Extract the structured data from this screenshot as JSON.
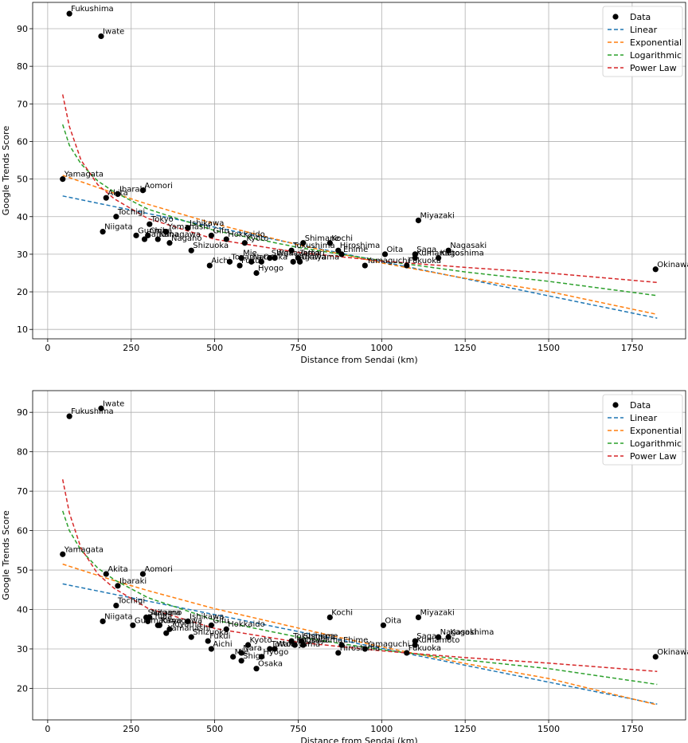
{
  "chart_data": [
    {
      "type": "scatter",
      "xlabel": "Distance from Sendai (km)",
      "ylabel": "Google Trends Score",
      "xlim": [
        -45,
        1910
      ],
      "ylim": [
        7.5,
        97
      ],
      "xticks": [
        0,
        250,
        500,
        750,
        1000,
        1250,
        1500,
        1750
      ],
      "yticks": [
        10,
        20,
        30,
        40,
        50,
        60,
        70,
        80,
        90
      ],
      "grid": true,
      "legend_position": "top-right",
      "legend": [
        "Data",
        "Linear",
        "Exponential",
        "Logarithmic",
        "Power Law"
      ],
      "points": [
        {
          "name": "Fukushima",
          "x": 65,
          "y": 94
        },
        {
          "name": "Iwate",
          "x": 160,
          "y": 88
        },
        {
          "name": "Yamagata",
          "x": 45,
          "y": 50
        },
        {
          "name": "Aomori",
          "x": 285,
          "y": 47
        },
        {
          "name": "Ibaraki",
          "x": 210,
          "y": 46
        },
        {
          "name": "Akita",
          "x": 175,
          "y": 45
        },
        {
          "name": "Tochigi",
          "x": 205,
          "y": 40
        },
        {
          "name": "Tokyo",
          "x": 305,
          "y": 38
        },
        {
          "name": "Ishikawa",
          "x": 420,
          "y": 37
        },
        {
          "name": "Niigata",
          "x": 165,
          "y": 36
        },
        {
          "name": "Gunma",
          "x": 265,
          "y": 35
        },
        {
          "name": "Yamanashi",
          "x": 355,
          "y": 36
        },
        {
          "name": "Chiba",
          "x": 300,
          "y": 35
        },
        {
          "name": "Saitama",
          "x": 290,
          "y": 34
        },
        {
          "name": "Kanagawa",
          "x": 330,
          "y": 34
        },
        {
          "name": "Nagano",
          "x": 365,
          "y": 33
        },
        {
          "name": "Gifu",
          "x": 490,
          "y": 35
        },
        {
          "name": "Hokkaido",
          "x": 535,
          "y": 34
        },
        {
          "name": "Kyoto",
          "x": 590,
          "y": 33
        },
        {
          "name": "Shizuoka",
          "x": 430,
          "y": 31
        },
        {
          "name": "Mie",
          "x": 580,
          "y": 29
        },
        {
          "name": "Shiga",
          "x": 665,
          "y": 29
        },
        {
          "name": "Toyama",
          "x": 545,
          "y": 28
        },
        {
          "name": "Nara",
          "x": 610,
          "y": 28
        },
        {
          "name": "Aichi",
          "x": 485,
          "y": 27
        },
        {
          "name": "Wakayama",
          "x": 680,
          "y": 29
        },
        {
          "name": "Fukui",
          "x": 575,
          "y": 27
        },
        {
          "name": "Hyogo",
          "x": 625,
          "y": 25
        },
        {
          "name": "Osaka",
          "x": 640,
          "y": 28
        },
        {
          "name": "Tokushima",
          "x": 730,
          "y": 31
        },
        {
          "name": "Tottori",
          "x": 750,
          "y": 29
        },
        {
          "name": "Kagawa",
          "x": 735,
          "y": 28
        },
        {
          "name": "Okayama",
          "x": 755,
          "y": 28
        },
        {
          "name": "Shimane",
          "x": 765,
          "y": 33
        },
        {
          "name": "Kochi",
          "x": 845,
          "y": 33
        },
        {
          "name": "Hiroshima",
          "x": 870,
          "y": 31
        },
        {
          "name": "Ehime",
          "x": 880,
          "y": 30
        },
        {
          "name": "Yamaguchi",
          "x": 950,
          "y": 27
        },
        {
          "name": "Oita",
          "x": 1010,
          "y": 30
        },
        {
          "name": "Fukuoka",
          "x": 1075,
          "y": 27
        },
        {
          "name": "Kumamoto",
          "x": 1100,
          "y": 29
        },
        {
          "name": "Saga",
          "x": 1100,
          "y": 30
        },
        {
          "name": "Miyazaki",
          "x": 1110,
          "y": 39
        },
        {
          "name": "Kagoshima",
          "x": 1170,
          "y": 29
        },
        {
          "name": "Nagasaki",
          "x": 1200,
          "y": 31
        },
        {
          "name": "Okinawa",
          "x": 1820,
          "y": 26
        }
      ],
      "fits": [
        {
          "name": "Linear",
          "color": "#1f77b4",
          "x": [
            45,
            1825
          ],
          "y": [
            45.5,
            13
          ]
        },
        {
          "name": "Exponential",
          "color": "#ff7f0e",
          "x": [
            45,
            100,
            200,
            300,
            500,
            750,
            1000,
            1250,
            1500,
            1825
          ],
          "y": [
            51,
            49.3,
            46.2,
            43.3,
            38.1,
            32.5,
            27.7,
            23.6,
            20.1,
            14
          ]
        },
        {
          "name": "Logarithmic",
          "color": "#2ca02c",
          "x": [
            45,
            65,
            100,
            150,
            200,
            300,
            500,
            750,
            1000,
            1250,
            1500,
            1825
          ],
          "y": [
            64.5,
            59,
            54,
            49.5,
            46.5,
            42,
            36.3,
            31.8,
            28.3,
            25.3,
            22.8,
            19
          ]
        },
        {
          "name": "Power Law",
          "color": "#d62728",
          "x": [
            45,
            65,
            100,
            150,
            200,
            300,
            500,
            750,
            1000,
            1250,
            1500,
            1825
          ],
          "y": [
            72.5,
            64,
            55,
            48.5,
            44.7,
            39.5,
            34,
            30.5,
            28.2,
            26.5,
            25,
            22.5
          ]
        }
      ]
    },
    {
      "type": "scatter",
      "xlabel": "Distance from Sendai (km)",
      "ylabel": "Google Trends Score",
      "xlim": [
        -45,
        1910
      ],
      "ylim": [
        12,
        95.5
      ],
      "xticks": [
        0,
        250,
        500,
        750,
        1000,
        1250,
        1500,
        1750
      ],
      "yticks": [
        20,
        30,
        40,
        50,
        60,
        70,
        80,
        90
      ],
      "grid": true,
      "legend_position": "top-right",
      "legend": [
        "Data",
        "Linear",
        "Exponential",
        "Logarithmic",
        "Power Law"
      ],
      "points": [
        {
          "name": "Iwate",
          "x": 160,
          "y": 91
        },
        {
          "name": "Fukushima",
          "x": 65,
          "y": 89
        },
        {
          "name": "Yamagata",
          "x": 45,
          "y": 54
        },
        {
          "name": "Akita",
          "x": 175,
          "y": 49
        },
        {
          "name": "Aomori",
          "x": 285,
          "y": 49
        },
        {
          "name": "Ibaraki",
          "x": 210,
          "y": 46
        },
        {
          "name": "Tochigi",
          "x": 205,
          "y": 41
        },
        {
          "name": "Saitama",
          "x": 295,
          "y": 38
        },
        {
          "name": "Chiba",
          "x": 300,
          "y": 37
        },
        {
          "name": "Nagano",
          "x": 305,
          "y": 38
        },
        {
          "name": "Tokyo",
          "x": 330,
          "y": 36
        },
        {
          "name": "Ishikawa",
          "x": 420,
          "y": 37
        },
        {
          "name": "Niigata",
          "x": 165,
          "y": 37
        },
        {
          "name": "Gunma",
          "x": 255,
          "y": 36
        },
        {
          "name": "Kanagawa",
          "x": 335,
          "y": 36
        },
        {
          "name": "Toyama",
          "x": 365,
          "y": 35
        },
        {
          "name": "Yamanashi",
          "x": 355,
          "y": 34
        },
        {
          "name": "Gifu",
          "x": 490,
          "y": 36
        },
        {
          "name": "Hokkaido",
          "x": 535,
          "y": 35
        },
        {
          "name": "Shizuoka",
          "x": 430,
          "y": 33
        },
        {
          "name": "Fukui",
          "x": 480,
          "y": 32
        },
        {
          "name": "Aichi",
          "x": 490,
          "y": 30
        },
        {
          "name": "Nara",
          "x": 580,
          "y": 29
        },
        {
          "name": "Kyoto",
          "x": 600,
          "y": 31
        },
        {
          "name": "Mie",
          "x": 555,
          "y": 28
        },
        {
          "name": "Shiga",
          "x": 580,
          "y": 27
        },
        {
          "name": "Tottori",
          "x": 665,
          "y": 30
        },
        {
          "name": "Wakayama",
          "x": 680,
          "y": 30
        },
        {
          "name": "Hyogo",
          "x": 640,
          "y": 28
        },
        {
          "name": "Osaka",
          "x": 625,
          "y": 25
        },
        {
          "name": "Tokushima",
          "x": 730,
          "y": 32
        },
        {
          "name": "Kagawa",
          "x": 740,
          "y": 31
        },
        {
          "name": "Shimane",
          "x": 760,
          "y": 32
        },
        {
          "name": "Okayama",
          "x": 765,
          "y": 31
        },
        {
          "name": "Kochi",
          "x": 845,
          "y": 38
        },
        {
          "name": "Ehime",
          "x": 880,
          "y": 31
        },
        {
          "name": "Hiroshima",
          "x": 870,
          "y": 29
        },
        {
          "name": "Yamaguchi",
          "x": 950,
          "y": 30
        },
        {
          "name": "Oita",
          "x": 1005,
          "y": 36
        },
        {
          "name": "Fukuoka",
          "x": 1075,
          "y": 29
        },
        {
          "name": "Saga",
          "x": 1100,
          "y": 32
        },
        {
          "name": "Kumamoto",
          "x": 1100,
          "y": 31
        },
        {
          "name": "Miyazaki",
          "x": 1110,
          "y": 38
        },
        {
          "name": "Nagasaki",
          "x": 1170,
          "y": 33
        },
        {
          "name": "Kagoshima",
          "x": 1200,
          "y": 33
        },
        {
          "name": "Okinawa",
          "x": 1820,
          "y": 28
        }
      ],
      "fits": [
        {
          "name": "Linear",
          "color": "#1f77b4",
          "x": [
            45,
            1825
          ],
          "y": [
            46.5,
            16
          ]
        },
        {
          "name": "Exponential",
          "color": "#ff7f0e",
          "x": [
            45,
            100,
            200,
            300,
            500,
            750,
            1000,
            1250,
            1500,
            1825
          ],
          "y": [
            51.5,
            50,
            47.3,
            44.8,
            40.2,
            35.3,
            30.5,
            26.3,
            22.5,
            15.8
          ]
        },
        {
          "name": "Logarithmic",
          "color": "#2ca02c",
          "x": [
            45,
            65,
            100,
            150,
            200,
            300,
            500,
            750,
            1000,
            1250,
            1500,
            1825
          ],
          "y": [
            65,
            60,
            55,
            50.5,
            47.5,
            43,
            37.3,
            33,
            29.8,
            27.2,
            25,
            21
          ]
        },
        {
          "name": "Power Law",
          "color": "#d62728",
          "x": [
            45,
            65,
            100,
            150,
            200,
            300,
            500,
            750,
            1000,
            1250,
            1500,
            1825
          ],
          "y": [
            73,
            64.5,
            55.5,
            49,
            45.3,
            40.3,
            35.2,
            31.7,
            29.5,
            27.8,
            26.4,
            24.3
          ]
        }
      ]
    }
  ]
}
